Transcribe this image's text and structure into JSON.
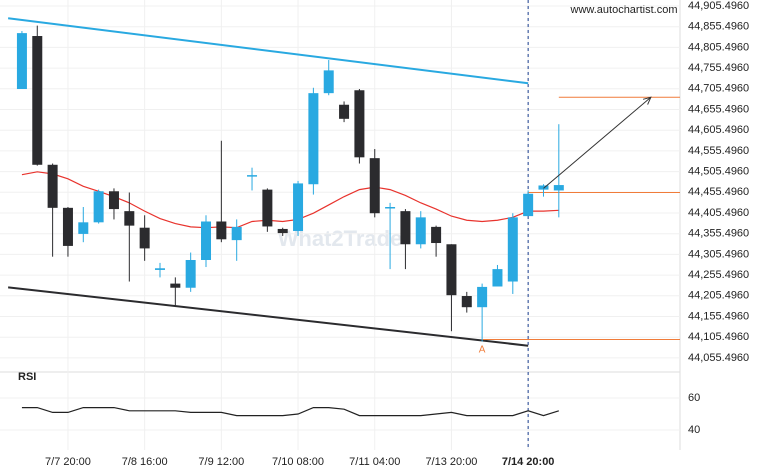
{
  "chart_data": {
    "type": "candlestick",
    "source": "www.autochartist.com",
    "watermark": "What2Trade",
    "categories": [
      null,
      null,
      null,
      "7/7 20:00",
      null,
      null,
      null,
      null,
      "7/8 16:00",
      null,
      null,
      null,
      null,
      "7/9 12:00",
      null,
      null,
      null,
      null,
      "7/10 08:00",
      null,
      null,
      null,
      null,
      "7/11 04:00",
      null,
      null,
      null,
      null,
      "7/13 20:00",
      null,
      null,
      null,
      null,
      "7/14 20:00",
      null,
      null
    ],
    "open": [
      44705,
      44833,
      44522,
      44418,
      44355,
      44383,
      44458,
      44410,
      44370,
      44268,
      44235,
      44225,
      44292,
      44385,
      44340,
      44495,
      44462,
      44367,
      44362,
      44475,
      44695,
      44667,
      44702,
      44538,
      44417,
      44410,
      44330,
      44372,
      44330,
      44205,
      44178,
      44228,
      44240,
      44398,
      44462,
      44460
    ],
    "high": [
      44845,
      44858,
      44525,
      44420,
      44420,
      44462,
      44465,
      44455,
      44400,
      44285,
      44250,
      44310,
      44400,
      44580,
      44390,
      44515,
      44465,
      44370,
      44483,
      44708,
      44775,
      44675,
      44705,
      44560,
      44430,
      44415,
      44410,
      44375,
      44330,
      44215,
      44235,
      44280,
      44405,
      44460,
      44475,
      44620
    ],
    "low": [
      44705,
      44520,
      44300,
      44300,
      44335,
      44380,
      44390,
      44240,
      44290,
      44250,
      44180,
      44215,
      44275,
      44335,
      44290,
      44460,
      44360,
      44350,
      44350,
      44450,
      44690,
      44625,
      44525,
      44395,
      44270,
      44270,
      44320,
      44300,
      44120,
      44165,
      44095,
      44230,
      44210,
      44405,
      44445,
      44395
    ],
    "close": [
      44840,
      44522,
      44418,
      44326,
      44383,
      44458,
      44415,
      44375,
      44320,
      44272,
      44225,
      44292,
      44385,
      44342,
      44372,
      44497,
      44373,
      44357,
      44477,
      44695,
      44750,
      44633,
      44540,
      44405,
      44420,
      44330,
      44395,
      44333,
      44207,
      44178,
      44227,
      44270,
      44395,
      44452,
      44472,
      44473
    ],
    "up_color": "#29a9e1",
    "down_color": "#2b2b2e",
    "moving_average": {
      "color": "#e8332d",
      "values": [
        44498,
        44505,
        44500,
        44488,
        44470,
        44458,
        44445,
        44430,
        44410,
        44392,
        44380,
        44372,
        44370,
        44372,
        44370,
        44385,
        44388,
        44385,
        44390,
        44405,
        44425,
        44445,
        44462,
        44468,
        44462,
        44448,
        44430,
        44415,
        44398,
        44388,
        44385,
        44388,
        44395,
        44410,
        44410,
        44412
      ]
    },
    "trendlines": [
      {
        "color": "#29a9e1",
        "x": [
          -0.9,
          33
        ],
        "values": [
          44876,
          44719
        ]
      },
      {
        "color": "#2b2b2e",
        "x": [
          -0.9,
          33
        ],
        "values": [
          44226,
          44085
        ]
      }
    ],
    "levels": [
      {
        "x": 35,
        "value": 44685
      },
      {
        "x": 33,
        "value": 44455
      },
      {
        "x": 30,
        "value": 44100
      }
    ],
    "level_color": "#f07c3a",
    "arrow": {
      "x": [
        34,
        41
      ],
      "values": [
        44465,
        44685
      ]
    },
    "pattern_label": {
      "text": "A",
      "x": 30,
      "value": 44075
    },
    "xlim": [
      -1.43,
      42.9
    ],
    "ylim": [
      44026.3,
      44920
    ],
    "yticks": [
      {
        "value": 44905.496,
        "label": "44,905.4960"
      },
      {
        "value": 44855.496,
        "label": "44,855.4960"
      },
      {
        "value": 44805.496,
        "label": "44,805.4960"
      },
      {
        "value": 44755.496,
        "label": "44,755.4960"
      },
      {
        "value": 44705.496,
        "label": "44,705.4960"
      },
      {
        "value": 44655.496,
        "label": "44,655.4960"
      },
      {
        "value": 44605.496,
        "label": "44,605.4960"
      },
      {
        "value": 44555.496,
        "label": "44,555.4960"
      },
      {
        "value": 44505.496,
        "label": "44,505.4960"
      },
      {
        "value": 44455.496,
        "label": "44,455.4960"
      },
      {
        "value": 44405.496,
        "label": "44,405.4960"
      },
      {
        "value": 44355.496,
        "label": "44,355.4960"
      },
      {
        "value": 44305.496,
        "label": "44,305.4960"
      },
      {
        "value": 44255.496,
        "label": "44,255.4960"
      },
      {
        "value": 44205.496,
        "label": "44,205.4960"
      },
      {
        "value": 44155.496,
        "label": "44,155.4960"
      },
      {
        "value": 44105.496,
        "label": "44,105.4960"
      },
      {
        "value": 44055.496,
        "label": "44,055.4960"
      }
    ],
    "rsi": {
      "title": "RSI",
      "ylim": [
        27.5,
        71.25
      ],
      "yticks": [
        60,
        40
      ],
      "values": [
        54,
        54,
        51,
        51,
        54,
        54,
        54,
        52,
        52,
        52,
        52,
        51,
        51,
        51,
        49,
        49,
        49,
        49,
        50,
        54,
        54,
        53,
        49,
        49,
        49,
        49,
        49,
        50,
        51,
        49,
        49,
        49,
        49,
        52,
        49,
        52
      ]
    }
  }
}
